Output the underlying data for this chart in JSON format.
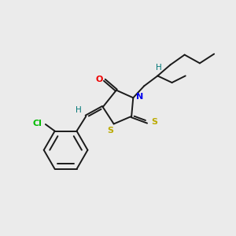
{
  "bg_color": "#ebebeb",
  "bond_color": "#1a1a1a",
  "N_color": "#0000ee",
  "O_color": "#ee0000",
  "S_color": "#bbaa00",
  "Cl_color": "#00bb00",
  "H_color": "#007777",
  "figsize": [
    3.0,
    3.0
  ],
  "dpi": 100,
  "xlim": [
    10,
    290
  ],
  "ylim": [
    10,
    290
  ]
}
